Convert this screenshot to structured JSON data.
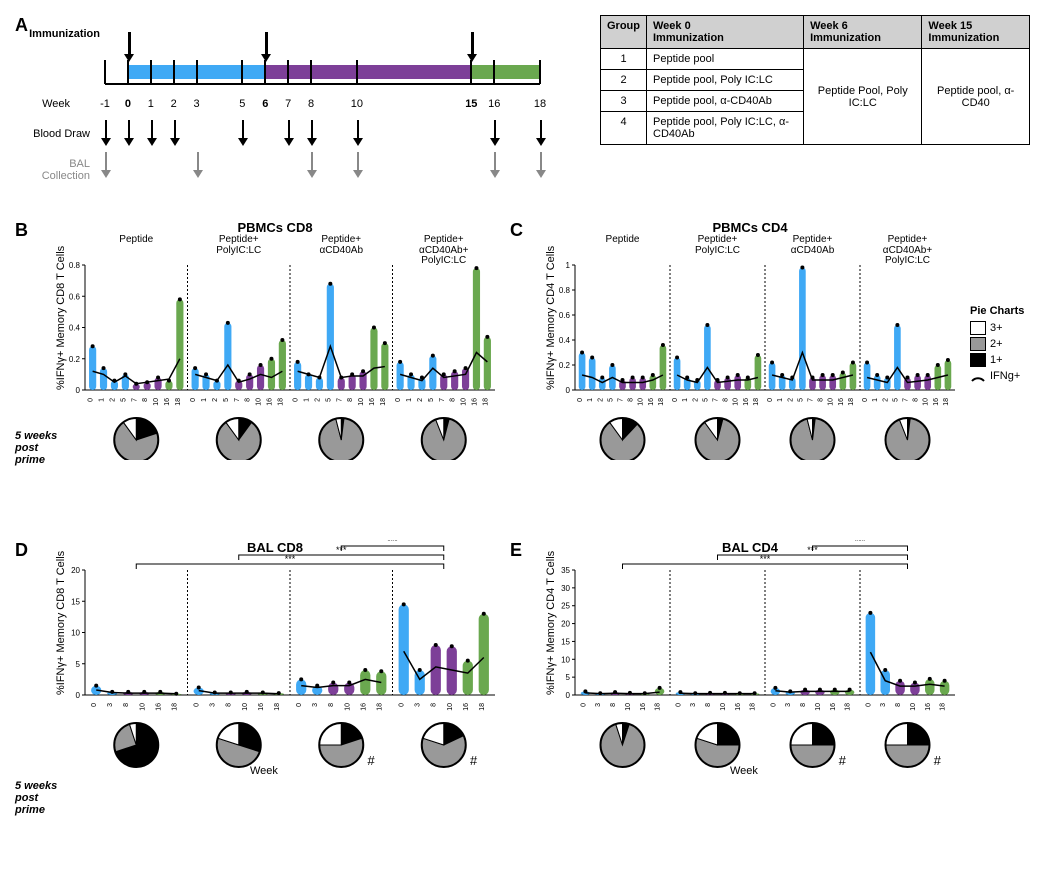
{
  "panel_labels": {
    "A": "A",
    "B": "B",
    "C": "C",
    "D": "D",
    "E": "E"
  },
  "timeline": {
    "row_labels": {
      "immunization": "Immunization",
      "week": "Week",
      "blood": "Blood Draw",
      "bal": "BAL\nCollection"
    },
    "weeks": [
      -1,
      0,
      1,
      2,
      3,
      5,
      6,
      7,
      8,
      10,
      15,
      16,
      18
    ],
    "segments": [
      {
        "start": 0,
        "end": 6,
        "color": "#3fa9f5"
      },
      {
        "start": 6,
        "end": 15,
        "color": "#7d3f98"
      },
      {
        "start": 15,
        "end": 18,
        "color": "#6aa84f"
      }
    ],
    "immunization_arrows": [
      0,
      6,
      15
    ],
    "blood_arrows": [
      -1,
      0,
      1,
      2,
      5,
      7,
      8,
      10,
      16,
      18
    ],
    "bal_arrows": [
      -1,
      3,
      8,
      10,
      16,
      18
    ]
  },
  "table": {
    "headers": [
      "Group",
      "Week 0\nImmunization",
      "Week 6\nImmunization",
      "Week 15\nImmunization"
    ],
    "rows": [
      [
        "1",
        "Peptide pool"
      ],
      [
        "2",
        "Peptide pool, Poly IC:LC"
      ],
      [
        "3",
        "Peptide pool, α-CD40Ab"
      ],
      [
        "4",
        "Peptide pool, Poly IC:LC, α-CD40Ab"
      ]
    ],
    "week6_merged": "Peptide Pool, Poly IC:LC",
    "week15_merged": "Peptide pool, α-CD40"
  },
  "colors": {
    "blue": "#3fa9f5",
    "purple": "#7d3f98",
    "green": "#6aa84f",
    "grey_arrow": "#888888",
    "pie_3plus": "#ffffff",
    "pie_2plus": "#999999",
    "pie_1plus": "#000000"
  },
  "subpanel_headers": [
    "Peptide",
    "Peptide+\nPolyIC:LC",
    "Peptide+\nαCD40Ab",
    "Peptide+\nαCD40Ab+\nPolyIC:LC"
  ],
  "pie_legend": {
    "title": "Pie Charts",
    "items": [
      {
        "label": "3+",
        "color": "#ffffff"
      },
      {
        "label": "2+",
        "color": "#999999"
      },
      {
        "label": "1+",
        "color": "#000000"
      },
      {
        "label": "IFNg+",
        "arc": true
      }
    ]
  },
  "pie_row_label": "5 weeks\npost\nprime",
  "xaxis_label": "Week",
  "panels": {
    "B": {
      "title": "PBMCs CD8",
      "ylabel": "%IFNγ+ Memory CD8 T Cells",
      "ylim": [
        0,
        0.8
      ],
      "yticks": [
        0,
        0.2,
        0.4,
        0.6,
        0.8
      ],
      "xticks": [
        0,
        1,
        2,
        5,
        7,
        8,
        10,
        16,
        18
      ],
      "bar_colors_by_xtick": [
        "#3fa9f5",
        "#3fa9f5",
        "#3fa9f5",
        "#3fa9f5",
        "#7d3f98",
        "#7d3f98",
        "#7d3f98",
        "#6aa84f",
        "#6aa84f"
      ],
      "sub": [
        {
          "bars": [
            0.28,
            0.14,
            0.06,
            0.1,
            0.04,
            0.05,
            0.08,
            0.06,
            0.58
          ],
          "line": [
            0.12,
            0.1,
            0.05,
            0.09,
            0.04,
            0.05,
            0.06,
            0.07,
            0.2
          ],
          "pie": [
            0.2,
            0.7,
            0.1
          ]
        },
        {
          "bars": [
            0.14,
            0.1,
            0.06,
            0.43,
            0.06,
            0.1,
            0.16,
            0.2,
            0.32
          ],
          "line": [
            0.1,
            0.08,
            0.06,
            0.16,
            0.05,
            0.07,
            0.1,
            0.08,
            0.12
          ],
          "pie": [
            0.1,
            0.8,
            0.1
          ]
        },
        {
          "bars": [
            0.18,
            0.1,
            0.08,
            0.68,
            0.08,
            0.1,
            0.12,
            0.4,
            0.3
          ],
          "line": [
            0.12,
            0.1,
            0.08,
            0.28,
            0.08,
            0.09,
            0.09,
            0.14,
            0.15
          ],
          "pie": [
            0.02,
            0.94,
            0.04
          ]
        },
        {
          "bars": [
            0.18,
            0.1,
            0.08,
            0.22,
            0.1,
            0.12,
            0.14,
            0.78,
            0.34
          ],
          "line": [
            0.1,
            0.08,
            0.06,
            0.14,
            0.08,
            0.09,
            0.1,
            0.24,
            0.18
          ],
          "pie": [
            0.04,
            0.9,
            0.06
          ]
        }
      ]
    },
    "C": {
      "title": "PBMCs CD4",
      "ylabel": "%IFNγ+ Memory CD4 T Cells",
      "ylim": [
        0,
        1.0
      ],
      "yticks": [
        0,
        0.2,
        0.4,
        0.6,
        0.8,
        1.0
      ],
      "xticks": [
        0,
        1,
        2,
        5,
        7,
        8,
        10,
        16,
        18
      ],
      "bar_colors_by_xtick": [
        "#3fa9f5",
        "#3fa9f5",
        "#3fa9f5",
        "#3fa9f5",
        "#7d3f98",
        "#7d3f98",
        "#7d3f98",
        "#6aa84f",
        "#6aa84f"
      ],
      "sub": [
        {
          "bars": [
            0.3,
            0.26,
            0.1,
            0.2,
            0.08,
            0.1,
            0.1,
            0.12,
            0.36
          ],
          "line": [
            0.12,
            0.1,
            0.06,
            0.1,
            0.06,
            0.06,
            0.06,
            0.08,
            0.12
          ],
          "pie": [
            0.12,
            0.78,
            0.1
          ]
        },
        {
          "bars": [
            0.26,
            0.1,
            0.08,
            0.52,
            0.08,
            0.1,
            0.12,
            0.1,
            0.28
          ],
          "line": [
            0.12,
            0.08,
            0.06,
            0.18,
            0.06,
            0.07,
            0.08,
            0.08,
            0.1
          ],
          "pie": [
            0.04,
            0.86,
            0.1
          ]
        },
        {
          "bars": [
            0.22,
            0.12,
            0.1,
            0.98,
            0.1,
            0.12,
            0.12,
            0.14,
            0.22
          ],
          "line": [
            0.12,
            0.1,
            0.08,
            0.3,
            0.08,
            0.08,
            0.08,
            0.1,
            0.12
          ],
          "pie": [
            0.02,
            0.94,
            0.04
          ]
        },
        {
          "bars": [
            0.22,
            0.12,
            0.1,
            0.52,
            0.1,
            0.12,
            0.12,
            0.2,
            0.24
          ],
          "line": [
            0.1,
            0.08,
            0.06,
            0.18,
            0.06,
            0.07,
            0.08,
            0.1,
            0.12
          ],
          "pie": [
            0.02,
            0.92,
            0.06
          ]
        }
      ]
    },
    "D": {
      "title": "BAL CD8",
      "ylabel": "%IFNγ+ Memory CD8 T Cells",
      "ylim": [
        0,
        20
      ],
      "yticks": [
        0,
        5,
        10,
        15,
        20
      ],
      "xticks": [
        0,
        3,
        8,
        10,
        16,
        18
      ],
      "bar_colors_by_xtick": [
        "#3fa9f5",
        "#3fa9f5",
        "#7d3f98",
        "#7d3f98",
        "#6aa84f",
        "#6aa84f"
      ],
      "sig": [
        [
          0,
          3,
          "***"
        ],
        [
          1,
          3,
          "***"
        ],
        [
          2,
          3,
          "***"
        ]
      ],
      "sub": [
        {
          "bars": [
            1.5,
            0.5,
            0.5,
            0.5,
            0.5,
            0.2
          ],
          "line": [
            0.8,
            0.4,
            0.3,
            0.3,
            0.3,
            0.2
          ],
          "pie": [
            0.7,
            0.25,
            0.05
          ]
        },
        {
          "bars": [
            1.2,
            0.4,
            0.4,
            0.5,
            0.4,
            0.3
          ],
          "line": [
            0.7,
            0.3,
            0.3,
            0.3,
            0.3,
            0.2
          ],
          "pie": [
            0.3,
            0.5,
            0.2
          ]
        },
        {
          "bars": [
            2.5,
            1.5,
            2.0,
            2.0,
            4.0,
            3.8
          ],
          "line": [
            1.5,
            1.2,
            1.5,
            1.5,
            2.5,
            2.0
          ],
          "pie": [
            0.2,
            0.55,
            0.25
          ],
          "hash": true
        },
        {
          "bars": [
            14.5,
            4.0,
            8.0,
            7.8,
            5.5,
            13.0
          ],
          "line": [
            7.0,
            2.5,
            4.5,
            4.0,
            3.5,
            6.0
          ],
          "pie": [
            0.18,
            0.62,
            0.2
          ],
          "hash": true
        }
      ]
    },
    "E": {
      "title": "BAL CD4",
      "ylabel": "%IFNγ+ Memory CD4 T Cells",
      "ylim": [
        0,
        35
      ],
      "yticks": [
        0,
        5,
        10,
        15,
        20,
        25,
        30,
        35
      ],
      "xticks": [
        0,
        3,
        8,
        10,
        16,
        18
      ],
      "bar_colors_by_xtick": [
        "#3fa9f5",
        "#3fa9f5",
        "#7d3f98",
        "#7d3f98",
        "#6aa84f",
        "#6aa84f"
      ],
      "sig": [
        [
          0,
          3,
          "***"
        ],
        [
          1,
          3,
          "***"
        ],
        [
          2,
          3,
          "***"
        ]
      ],
      "sub": [
        {
          "bars": [
            1.0,
            0.5,
            0.8,
            0.6,
            0.5,
            2.0
          ],
          "line": [
            0.6,
            0.4,
            0.5,
            0.4,
            0.4,
            0.8
          ],
          "pie": [
            0.05,
            0.9,
            0.05
          ]
        },
        {
          "bars": [
            0.8,
            0.5,
            0.6,
            0.6,
            0.5,
            0.5
          ],
          "line": [
            0.5,
            0.4,
            0.4,
            0.4,
            0.4,
            0.4
          ],
          "pie": [
            0.25,
            0.55,
            0.2
          ]
        },
        {
          "bars": [
            2.0,
            1.0,
            1.5,
            1.5,
            1.5,
            1.5
          ],
          "line": [
            1.2,
            0.8,
            1.0,
            1.0,
            1.0,
            1.0
          ],
          "pie": [
            0.25,
            0.5,
            0.25
          ],
          "hash": true
        },
        {
          "bars": [
            23.0,
            7.0,
            4.0,
            3.5,
            4.5,
            4.0
          ],
          "line": [
            12.0,
            4.0,
            2.5,
            2.5,
            3.0,
            2.5
          ],
          "pie": [
            0.25,
            0.5,
            0.25
          ],
          "hash": true
        }
      ]
    }
  }
}
